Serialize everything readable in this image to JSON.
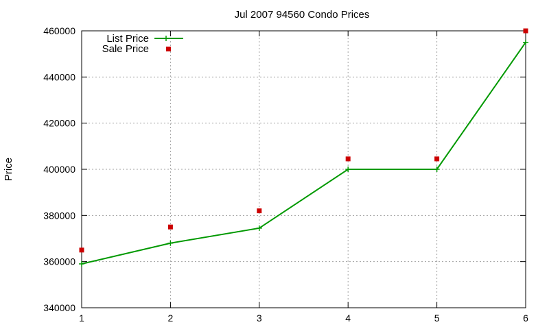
{
  "chart_data": {
    "type": "line",
    "title": "Jul 2007 94560 Condo Prices",
    "xlabel": "",
    "ylabel": "Price",
    "x": [
      1,
      2,
      3,
      4,
      5,
      6
    ],
    "xlim": [
      1,
      6
    ],
    "ylim": [
      340000,
      460000
    ],
    "xticks": [
      "1",
      "2",
      "3",
      "4",
      "5",
      "6"
    ],
    "yticks": [
      "340000",
      "360000",
      "380000",
      "400000",
      "420000",
      "440000",
      "460000"
    ],
    "grid": true,
    "legend_position": "top-left",
    "series": [
      {
        "name": "List Price",
        "style": "line-with-plus-markers",
        "color": "#009900",
        "values": [
          359000,
          368000,
          374500,
          400000,
          400000,
          455000
        ]
      },
      {
        "name": "Sale Price",
        "style": "square-markers",
        "color": "#cc0000",
        "values": [
          365000,
          375000,
          382000,
          404500,
          404500,
          460000
        ]
      }
    ]
  }
}
